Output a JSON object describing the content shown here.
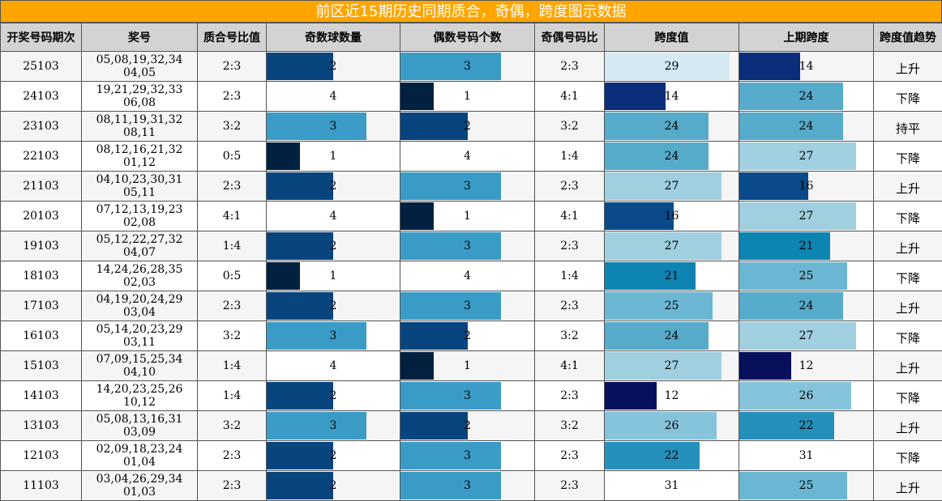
{
  "title": "前区近15期历史同期质合，奇偶，跨度图示数据",
  "headers": [
    "开奖号码期次",
    "奖号",
    "质合号比值",
    "奇数球数量",
    "偶数号码个数",
    "奇偶号码比",
    "跨度值",
    "上期跨度",
    "跨度值趋势"
  ],
  "rows": [
    {
      "period": "25103",
      "numbers": "05,08,19,32,34 04,05",
      "prime_ratio": "2:3",
      "odd": "2",
      "even": "3",
      "oe_ratio": "2:3",
      "span": "29",
      "prev_span": "14",
      "trend": "上升"
    },
    {
      "period": "24103",
      "numbers": "19,21,29,32,33 06,08",
      "prime_ratio": "2:3",
      "odd": "4",
      "even": "1",
      "oe_ratio": "4:1",
      "span": "14",
      "prev_span": "24",
      "trend": "下降"
    },
    {
      "period": "23103",
      "numbers": "08,11,19,31,32 08,11",
      "prime_ratio": "3:2",
      "odd": "3",
      "even": "2",
      "oe_ratio": "3:2",
      "span": "24",
      "prev_span": "24",
      "trend": "持平"
    },
    {
      "period": "22103",
      "numbers": "08,12,16,21,32 01,12",
      "prime_ratio": "0:5",
      "odd": "1",
      "even": "4",
      "oe_ratio": "1:4",
      "span": "24",
      "prev_span": "27",
      "trend": "下降"
    },
    {
      "period": "21103",
      "numbers": "04,10,23,30,31 05,11",
      "prime_ratio": "2:3",
      "odd": "2",
      "even": "3",
      "oe_ratio": "2:3",
      "span": "27",
      "prev_span": "16",
      "trend": "上升"
    },
    {
      "period": "20103",
      "numbers": "07,12,13,19,23 02,08",
      "prime_ratio": "4:1",
      "odd": "4",
      "even": "1",
      "oe_ratio": "4:1",
      "span": "16",
      "prev_span": "27",
      "trend": "下降"
    },
    {
      "period": "19103",
      "numbers": "05,12,22,27,32 04,07",
      "prime_ratio": "1:4",
      "odd": "2",
      "even": "3",
      "oe_ratio": "2:3",
      "span": "27",
      "prev_span": "21",
      "trend": "上升"
    },
    {
      "period": "18103",
      "numbers": "14,24,26,28,35 02,03",
      "prime_ratio": "0:5",
      "odd": "1",
      "even": "4",
      "oe_ratio": "1:4",
      "span": "21",
      "prev_span": "25",
      "trend": "下降"
    },
    {
      "period": "17103",
      "numbers": "04,19,20,24,29 03,04",
      "prime_ratio": "2:3",
      "odd": "2",
      "even": "3",
      "oe_ratio": "2:3",
      "span": "25",
      "prev_span": "24",
      "trend": "上升"
    },
    {
      "period": "16103",
      "numbers": "05,14,20,23,29 03,11",
      "prime_ratio": "3:2",
      "odd": "3",
      "even": "2",
      "oe_ratio": "3:2",
      "span": "24",
      "prev_span": "27",
      "trend": "下降"
    },
    {
      "period": "15103",
      "numbers": "07,09,15,25,34 04,10",
      "prime_ratio": "1:4",
      "odd": "4",
      "even": "1",
      "oe_ratio": "4:1",
      "span": "27",
      "prev_span": "12",
      "trend": "上升"
    },
    {
      "period": "14103",
      "numbers": "14,20,23,25,26 10,12",
      "prime_ratio": "1:4",
      "odd": "2",
      "even": "3",
      "oe_ratio": "2:3",
      "span": "12",
      "prev_span": "26",
      "trend": "下降"
    },
    {
      "period": "13103",
      "numbers": "05,08,13,16,31 03,09",
      "prime_ratio": "3:2",
      "odd": "3",
      "even": "2",
      "oe_ratio": "3:2",
      "span": "26",
      "prev_span": "22",
      "trend": "上升"
    },
    {
      "period": "12103",
      "numbers": "02,09,18,23,24 01,04",
      "prime_ratio": "2:3",
      "odd": "2",
      "even": "3",
      "oe_ratio": "2:3",
      "span": "22",
      "prev_span": "31",
      "trend": "下降"
    },
    {
      "period": "11103",
      "numbers": "03,04,26,29,34 01,03",
      "prime_ratio": "2:3",
      "odd": "2",
      "even": "3",
      "oe_ratio": "2:3",
      "span": "31",
      "prev_span": "25",
      "trend": "上升"
    }
  ],
  "colors": {
    "title_bg": "#FFA500",
    "header_bg": "#D3D3D3",
    "count_bars": {
      "1": "#022140",
      "2": "#08457E",
      "3": "#3A9CC6",
      "4": "#FFFFFF"
    },
    "span_bars": {
      "12": "#08105E",
      "14": "#0B2E7A",
      "16": "#0A4A8A",
      "21": "#0D84B2",
      "22": "#2590BC",
      "24": "#56ABCB",
      "25": "#6BB6D3",
      "26": "#86C4DB",
      "27": "#A0CFE0",
      "29": "#D4E9F1",
      "31": "#FFFFFF"
    }
  },
  "scales": {
    "count_max": 4,
    "span_max": 31
  }
}
